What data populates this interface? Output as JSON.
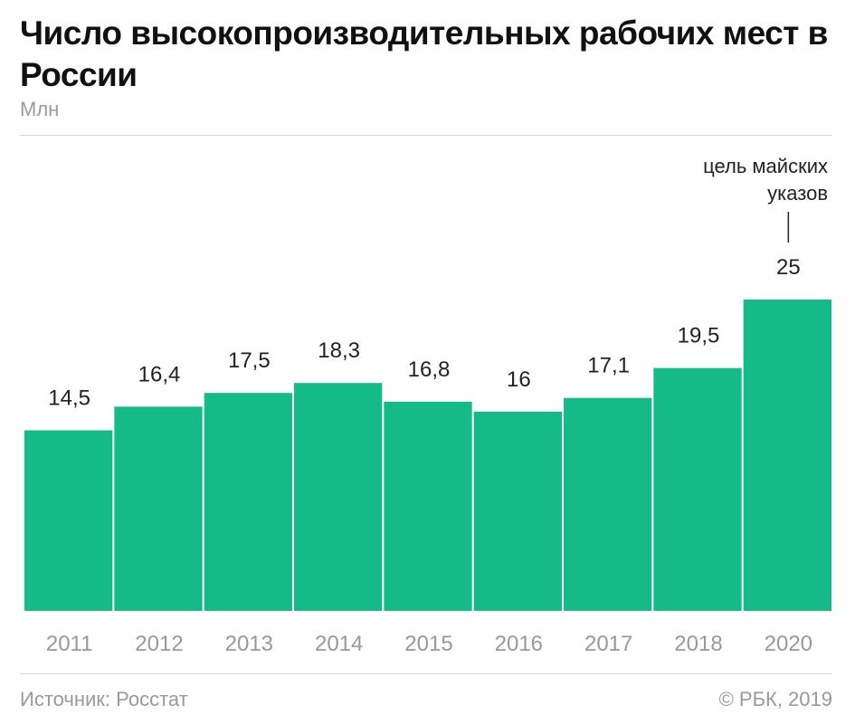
{
  "chart_data": {
    "type": "bar",
    "title": "Число высокопроизводительных рабочих мест в России",
    "ylabel": "Млн",
    "categories": [
      "2011",
      "2012",
      "2013",
      "2014",
      "2015",
      "2016",
      "2017",
      "2018",
      "2020"
    ],
    "values": [
      14.5,
      16.4,
      17.5,
      18.3,
      16.8,
      16,
      17.1,
      19.5,
      25
    ],
    "value_labels": [
      "14,5",
      "16,4",
      "17,5",
      "18,3",
      "16,8",
      "16",
      "17,1",
      "19,5",
      "25"
    ],
    "annotation": {
      "category": "2020",
      "lines": [
        "цель майских",
        "указов"
      ]
    },
    "ylim": [
      0,
      25
    ],
    "grid": false,
    "bar_color": "#15bb87"
  },
  "source": "Источник: Росстат",
  "copyright": "© РБК, 2019"
}
